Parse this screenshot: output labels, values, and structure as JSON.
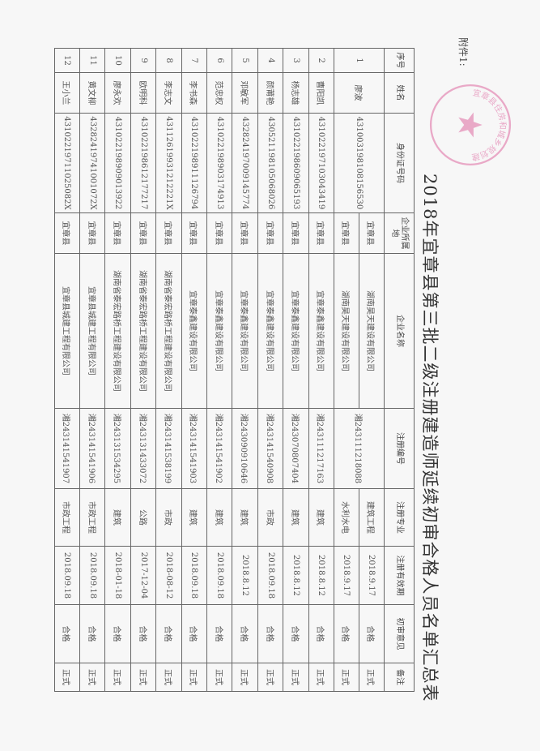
{
  "attachment_label": "附件1:",
  "title": "2018年宜章县第三批二级注册建造师延续初审合格人员名单汇总表",
  "stamp": {
    "text": "宜章县住房和城乡规划建设局",
    "color": "#e58fb8",
    "icon": "star-icon"
  },
  "table": {
    "headers": [
      "序号",
      "姓名",
      "身份证号码",
      "企业所属地",
      "企业名称",
      "注册编号",
      "注册专业",
      "注册有效期",
      "初审意见",
      "备注"
    ],
    "rows": [
      {
        "no": "1",
        "name": "廖波",
        "id": "431003198108156530",
        "reg_no": "湘243111218088",
        "entries": [
          {
            "area": "宜章县",
            "company": "湖南昊天建设有限公司",
            "major": "建筑工程",
            "valid": "2018.9.17",
            "opinion": "合格",
            "remark": "正式"
          },
          {
            "area": "宜章县",
            "company": "湖南昊天建设有限公司",
            "major": "水利水电",
            "valid": "2018.9.17",
            "opinion": "合格",
            "remark": "正式"
          }
        ]
      },
      {
        "no": "2",
        "name": "曹阳凯",
        "id": "431022197103043419",
        "reg_no": "湘243111217163",
        "entries": [
          {
            "area": "宜章县",
            "company": "宜章泰鑫建设有限公司",
            "major": "建筑",
            "valid": "2018.8.12",
            "opinion": "合格",
            "remark": "正式"
          }
        ]
      },
      {
        "no": "3",
        "name": "杨志雄",
        "id": "431022198609065193",
        "reg_no": "湘243070807404",
        "entries": [
          {
            "area": "宜章县",
            "company": "宜章泰鑫建设有限公司",
            "major": "建筑",
            "valid": "2018.8.12",
            "opinion": "合格",
            "remark": "正式"
          }
        ]
      },
      {
        "no": "4",
        "name": "颜莆艳",
        "id": "430521198105068026",
        "reg_no": "湘243141540908",
        "entries": [
          {
            "area": "宜章县",
            "company": "宜章泰鑫建设有限公司",
            "major": "市政",
            "valid": "2018.09.18",
            "opinion": "合格",
            "remark": "正式"
          }
        ]
      },
      {
        "no": "5",
        "name": "邓敏军",
        "id": "432824197009145774",
        "reg_no": "湘243090910646",
        "entries": [
          {
            "area": "宜章县",
            "company": "宜章泰鑫建设有限公司",
            "major": "建筑",
            "valid": "2018.8.12",
            "opinion": "合格",
            "remark": "正式"
          }
        ]
      },
      {
        "no": "6",
        "name": "范忠权",
        "id": "431022198903174913",
        "reg_no": "湘243141541902",
        "entries": [
          {
            "area": "宜章县",
            "company": "宜章泰鑫建设有限公司",
            "major": "建筑",
            "valid": "2018.09.18",
            "opinion": "合格",
            "remark": "正式"
          }
        ]
      },
      {
        "no": "7",
        "name": "李书森",
        "id": "431022198911126794",
        "reg_no": "湘243141541903",
        "entries": [
          {
            "area": "宜章县",
            "company": "宜章泰鑫建设有限公司",
            "major": "建筑",
            "valid": "2018.09.18",
            "opinion": "合格",
            "remark": "正式"
          }
        ]
      },
      {
        "no": "8",
        "name": "李志文",
        "id": "43112619931212221X",
        "reg_no": "湘243141538199",
        "entries": [
          {
            "area": "宜章县",
            "company": "湖南省泰宏路桥工程建设有限公司",
            "major": "市政",
            "valid": "2018-08-12",
            "opinion": "合格",
            "remark": "正式"
          }
        ]
      },
      {
        "no": "9",
        "name": "欧明科",
        "id": "431022198612177217",
        "reg_no": "湘243131433072",
        "entries": [
          {
            "area": "宜章县",
            "company": "湖南省泰宏路桥工程建设有限公司",
            "major": "公路",
            "valid": "2017-12-04",
            "opinion": "合格",
            "remark": "正式"
          }
        ]
      },
      {
        "no": "10",
        "name": "廖永欢",
        "id": "431022198909013922",
        "reg_no": "湘243131534295",
        "entries": [
          {
            "area": "宜章县",
            "company": "湖南省泰宏路桥工程建设有限公司",
            "major": "建筑",
            "valid": "2018-01-18",
            "opinion": "合格",
            "remark": "正式"
          }
        ]
      },
      {
        "no": "11",
        "name": "黄文柳",
        "id": "43282419741001072X",
        "reg_no": "湘243141541906",
        "entries": [
          {
            "area": "宜章县",
            "company": "宜章县城建工程有限公司",
            "major": "市政工程",
            "valid": "2018.09.18",
            "opinion": "合格",
            "remark": "正式"
          }
        ]
      },
      {
        "no": "12",
        "name": "王小兰",
        "id": "43102219711025082X",
        "reg_no": "湘243141541907",
        "entries": [
          {
            "area": "宜章县",
            "company": "宜章县城建工程有限公司",
            "major": "市政工程",
            "valid": "2018.09.18",
            "opinion": "合格",
            "remark": "正式"
          }
        ]
      }
    ]
  }
}
